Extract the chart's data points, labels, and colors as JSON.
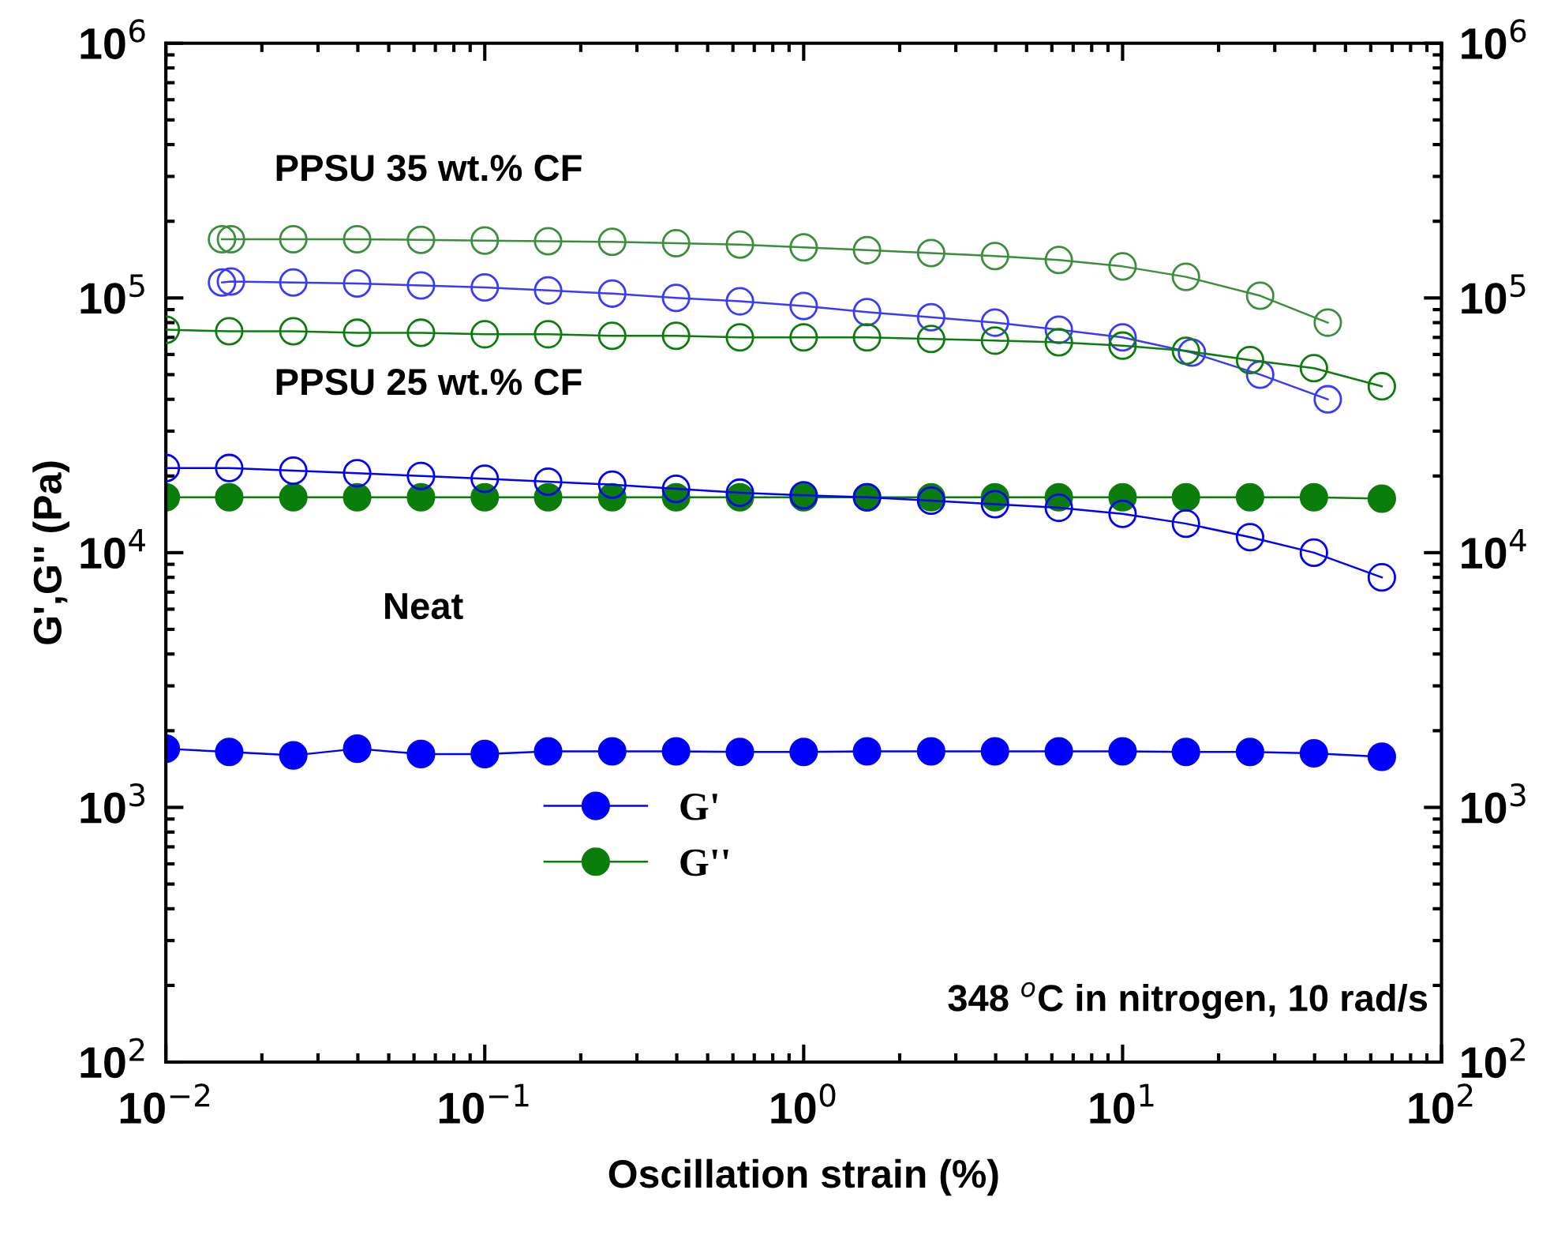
{
  "chart_data": {
    "type": "line",
    "xlabel": "Oscillation strain (%)",
    "ylabel": "G',G'' (Pa)",
    "log": "xy",
    "xlim": [
      0.01,
      100
    ],
    "ylim": [
      100,
      1000000
    ],
    "xticks": [
      {
        "value": 0.01,
        "label": "10$^{−2}$"
      },
      {
        "value": 0.1,
        "label": "10$^{−1}$"
      },
      {
        "value": 1,
        "label": "10$^{0}$"
      },
      {
        "value": 10,
        "label": "10$^{1}$"
      },
      {
        "value": 100,
        "label": "10$^{2}$"
      }
    ],
    "yticks": [
      {
        "value": 100,
        "label": "10$^{2}$"
      },
      {
        "value": 1000,
        "label": "10$^{3}$"
      },
      {
        "value": 10000,
        "label": "10$^{4}$"
      },
      {
        "value": 100000,
        "label": "10$^{5}$"
      },
      {
        "value": 1000000,
        "label": "10$^{6}$"
      }
    ],
    "marker": "circle",
    "line_style": "solid",
    "grid": false,
    "legend": "bottom",
    "annotations": [
      "PPSU 35 wt.% CF",
      "PPSU 25 wt.% CF",
      "Neat",
      "348 $^{o}$C in nitrogen, 10 rad/s"
    ],
    "series": [
      {
        "color": "#3a8f3a",
        "x": [
          0.015,
          0.016,
          0.0251,
          0.0398,
          0.0631,
          0.1,
          0.158,
          0.251,
          0.398,
          0.631,
          1,
          1.58,
          2.51,
          3.98,
          6.31,
          10,
          15.8,
          27,
          44
        ],
        "values": [
          170000,
          170000,
          170000,
          170000,
          169000,
          168000,
          167000,
          166000,
          164000,
          162000,
          158000,
          154000,
          150000,
          146000,
          141000,
          133000,
          121000,
          102000,
          80000
        ]
      },
      {
        "color": "#3a3aff",
        "x": [
          0.015,
          0.016,
          0.0251,
          0.0398,
          0.0631,
          0.1,
          0.158,
          0.251,
          0.398,
          0.631,
          1,
          1.58,
          2.51,
          3.98,
          6.31,
          10,
          16.5,
          27,
          44
        ],
        "values": [
          115000,
          116000,
          115000,
          114000,
          112000,
          110000,
          107000,
          104000,
          100000,
          97000,
          93000,
          88000,
          84000,
          80000,
          75000,
          70000,
          61000,
          50000,
          40000
        ]
      },
      {
        "color": "#0a7d0a",
        "x": [
          0.01,
          0.0158,
          0.0251,
          0.0398,
          0.0631,
          0.1,
          0.158,
          0.251,
          0.398,
          0.631,
          1,
          1.58,
          2.51,
          3.98,
          6.31,
          10,
          15.8,
          25.1,
          39.8,
          65
        ],
        "values": [
          75000,
          74000,
          74000,
          73000,
          73000,
          72000,
          72000,
          71000,
          71000,
          70000,
          70000,
          70000,
          69000,
          68000,
          67000,
          65000,
          62000,
          57000,
          53000,
          45000
        ]
      },
      {
        "color": "#0000ff",
        "x": [
          0.01,
          0.0158,
          0.0251,
          0.0398,
          0.0631,
          0.1,
          0.158,
          0.251,
          0.398,
          0.631,
          1,
          1.58,
          2.51,
          3.98,
          6.31,
          10,
          15.8,
          25.1,
          39.8,
          65
        ],
        "values": [
          21500,
          21500,
          21000,
          20500,
          20000,
          19500,
          19000,
          18500,
          17800,
          17200,
          16800,
          16500,
          16000,
          15500,
          15000,
          14200,
          13000,
          11500,
          10000,
          8000
        ]
      },
      {
        "name": "G''",
        "color": "#0a7d0a",
        "x": [
          0.01,
          0.0158,
          0.0251,
          0.0398,
          0.0631,
          0.1,
          0.158,
          0.251,
          0.398,
          0.631,
          1,
          1.58,
          2.51,
          3.98,
          6.31,
          10,
          15.8,
          25.1,
          39.8,
          65
        ],
        "values": [
          16500,
          16500,
          16500,
          16500,
          16500,
          16500,
          16500,
          16500,
          16500,
          16500,
          16500,
          16500,
          16500,
          16500,
          16500,
          16500,
          16500,
          16500,
          16500,
          16300
        ]
      },
      {
        "name": "G'",
        "color": "#0000ff",
        "x": [
          0.01,
          0.0158,
          0.0251,
          0.0398,
          0.0631,
          0.1,
          0.158,
          0.251,
          0.398,
          0.631,
          1,
          1.58,
          2.51,
          3.98,
          6.31,
          10,
          15.8,
          25.1,
          39.8,
          65
        ],
        "values": [
          1700,
          1650,
          1600,
          1700,
          1620,
          1620,
          1660,
          1660,
          1660,
          1650,
          1650,
          1660,
          1660,
          1660,
          1660,
          1660,
          1650,
          1650,
          1630,
          1580
        ]
      }
    ]
  }
}
